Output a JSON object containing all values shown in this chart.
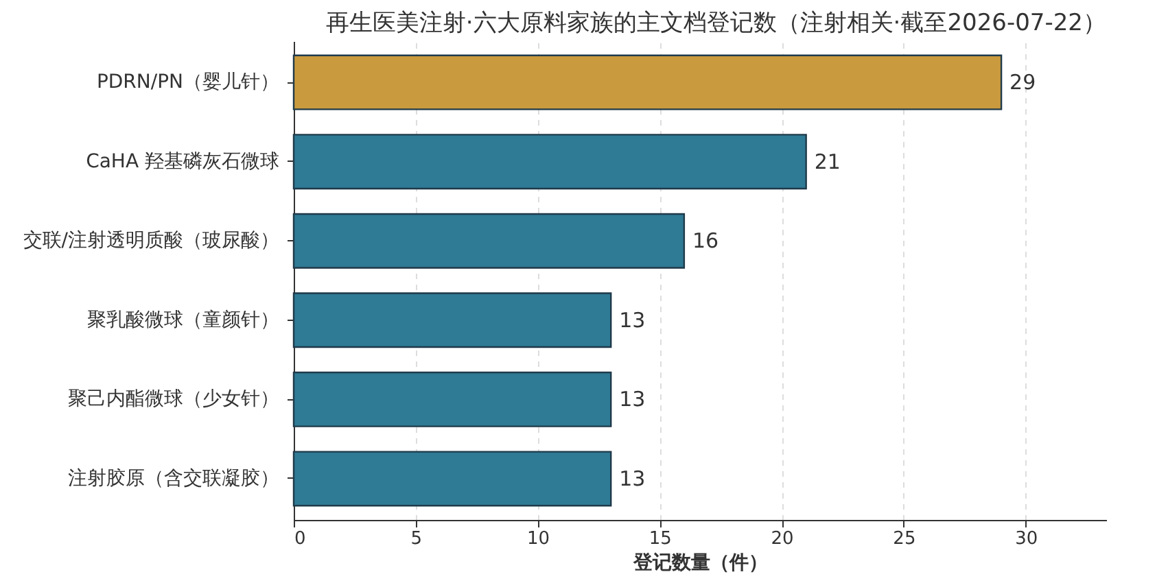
{
  "chart_data": {
    "type": "bar",
    "orientation": "horizontal",
    "title": "再生医美注射·六大原料家族的主文档登记数（注射相关·截至2026-07-22）",
    "xlabel": "登记数量（件）",
    "categories": [
      "PDRN/PN（婴儿针）",
      "CaHA 羟基磷灰石微球",
      "交联/注射透明质酸（玻尿酸）",
      "聚乳酸微球（童颜针）",
      "聚己内酯微球（少女针）",
      "注射胶原（含交联凝胶）"
    ],
    "values": [
      29,
      21,
      16,
      13,
      13,
      13
    ],
    "colors": [
      "#c99a3e",
      "#2f7a94",
      "#2f7a94",
      "#2f7a94",
      "#2f7a94",
      "#2f7a94"
    ],
    "xlim": [
      0,
      33.3
    ],
    "xticks": [
      0,
      5,
      10,
      15,
      20,
      25,
      30
    ],
    "grid": "x",
    "data_labels": true
  }
}
